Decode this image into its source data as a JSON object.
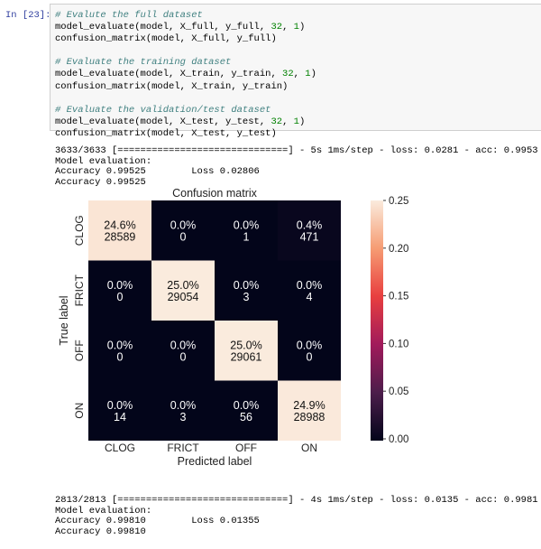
{
  "cell": {
    "prompt": "In [23]:",
    "code": [
      {
        "comment": "# Evalute the full dataset"
      },
      {
        "pre": "model_evaluate(model, X_full, y_full, ",
        "n1": "32",
        "mid": ", ",
        "n2": "1",
        "post": ")"
      },
      {
        "pre": "confusion_matrix(model, X_full, y_full)"
      },
      {
        "blank": true
      },
      {
        "comment": "# Evaluate the training dataset"
      },
      {
        "pre": "model_evaluate(model, X_train, y_train, ",
        "n1": "32",
        "mid": ", ",
        "n2": "1",
        "post": ")"
      },
      {
        "pre": "confusion_matrix(model, X_train, y_train)"
      },
      {
        "blank": true
      },
      {
        "comment": "# Evaluate the validation/test dataset"
      },
      {
        "pre": "model_evaluate(model, X_test, y_test, ",
        "n1": "32",
        "mid": ", ",
        "n2": "1",
        "post": ")"
      },
      {
        "pre": "confusion_matrix(model, X_test, y_test)"
      }
    ]
  },
  "output1": {
    "progress": "3633/3633 [==============================] - 5s 1ms/step - loss: 0.0281 - acc: 0.9953",
    "header": "Model evaluation:",
    "acc_loss": "Accuracy 0.99525        Loss 0.02806",
    "acc": "Accuracy 0.99525"
  },
  "output2": {
    "progress": "2813/2813 [==============================] - 4s 1ms/step - loss: 0.0135 - acc: 0.9981",
    "header": "Model evaluation:",
    "acc_loss": "Accuracy 0.99810        Loss 0.01355",
    "acc": "Accuracy 0.99810"
  },
  "chart_data": {
    "type": "heatmap",
    "title": "Confusion matrix",
    "xlabel": "Predicted label",
    "ylabel": "True label",
    "x_categories": [
      "CLOG",
      "FRICT",
      "OFF",
      "ON"
    ],
    "y_categories": [
      "CLOG",
      "FRICT",
      "OFF",
      "ON"
    ],
    "counts": [
      [
        28589,
        0,
        1,
        471
      ],
      [
        0,
        29054,
        3,
        4
      ],
      [
        0,
        0,
        29061,
        0
      ],
      [
        14,
        3,
        56,
        28988
      ]
    ],
    "percent_labels": [
      [
        "24.6%",
        "0.0%",
        "0.0%",
        "0.4%"
      ],
      [
        "0.0%",
        "25.0%",
        "0.0%",
        "0.0%"
      ],
      [
        "0.0%",
        "0.0%",
        "25.0%",
        "0.0%"
      ],
      [
        "0.0%",
        "0.0%",
        "0.0%",
        "24.9%"
      ]
    ],
    "fractions": [
      [
        0.246,
        0.0,
        0.0,
        0.004
      ],
      [
        0.0,
        0.25,
        0.0,
        0.0
      ],
      [
        0.0,
        0.0,
        0.25,
        0.0
      ],
      [
        0.0,
        0.0,
        0.0,
        0.249
      ]
    ],
    "colorbar": {
      "range": [
        0,
        0.25
      ],
      "ticks": [
        "0.00",
        "0.05",
        "0.10",
        "0.15",
        "0.20",
        "0.25"
      ],
      "colormap": "rocket"
    },
    "colors": [
      "#03051a",
      "#4c1d4b",
      "#a11a5b",
      "#e83f3f",
      "#f69c73",
      "#faebdd"
    ]
  }
}
